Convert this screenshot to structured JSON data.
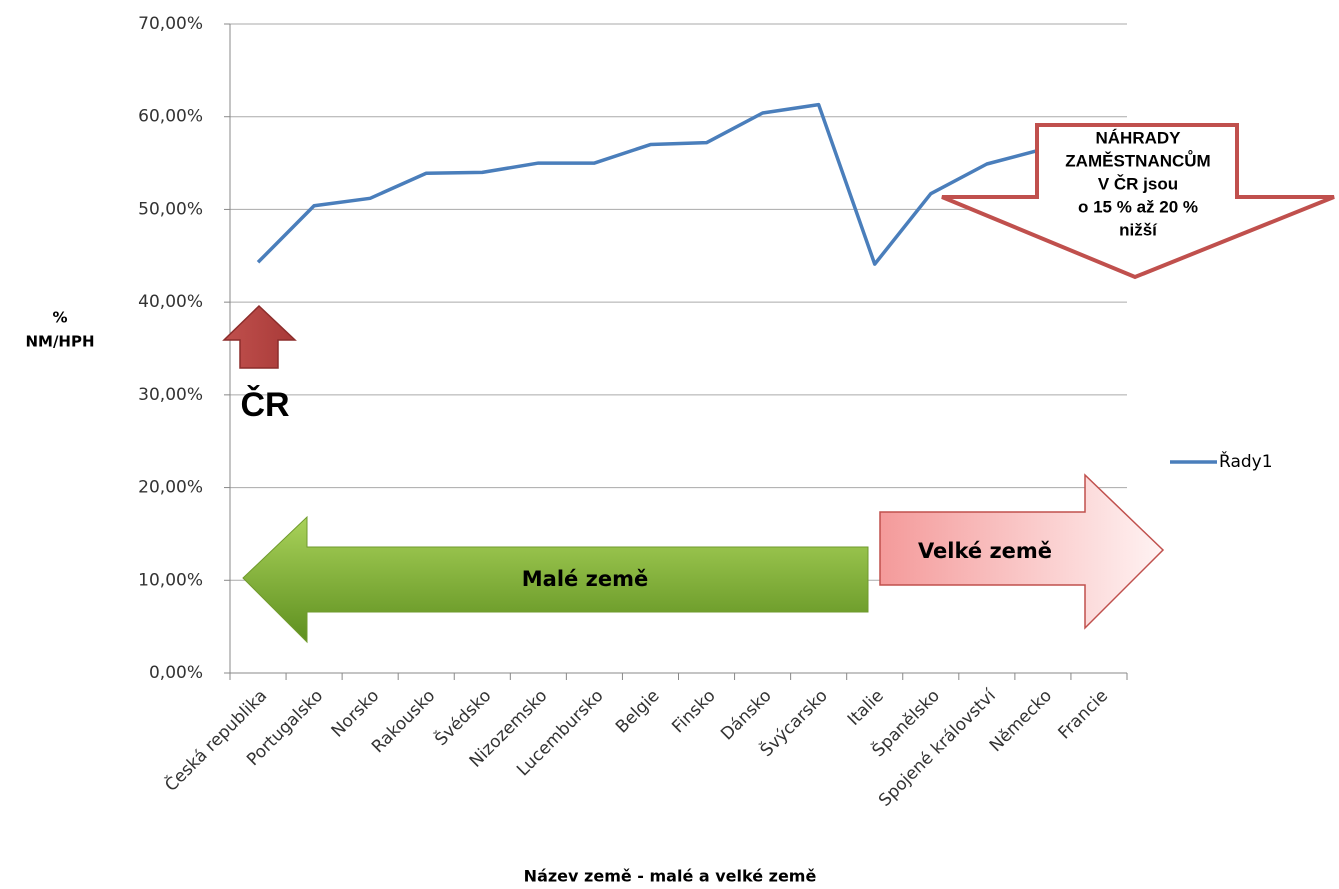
{
  "chart_data": {
    "type": "line",
    "categories": [
      "Česká republika",
      "Portugalsko",
      "Norsko",
      "Rakousko",
      "Švédsko",
      "Nizozemsko",
      "Lucembursko",
      "Belgie",
      "Finsko",
      "Dánsko",
      "Švýcarsko",
      "Italie",
      "Španělsko",
      "Spojené království",
      "Německo",
      "Francie"
    ],
    "series": [
      {
        "name": "Řady1",
        "color": "#4a7ebb",
        "values": [
          44.3,
          50.4,
          51.2,
          53.9,
          54.0,
          55.0,
          55.0,
          57.0,
          57.2,
          60.4,
          61.3,
          44.1,
          51.7,
          54.9,
          56.5,
          58.0
        ]
      }
    ],
    "ylim": [
      0,
      70
    ],
    "yticks": [
      {
        "value": 0,
        "label": "0,00%"
      },
      {
        "value": 10,
        "label": "10,00%"
      },
      {
        "value": 20,
        "label": "20,00%"
      },
      {
        "value": 30,
        "label": "30,00%"
      },
      {
        "value": 40,
        "label": "40,00%"
      },
      {
        "value": 50,
        "label": "50,00%"
      },
      {
        "value": 60,
        "label": "60,00%"
      },
      {
        "value": 70,
        "label": "70,00%"
      }
    ],
    "grid": true,
    "legend": "right",
    "ylabel": [
      "%",
      "NM/HPH"
    ],
    "xlabel": "Název země - malé a velké země",
    "annotations": {
      "callout": [
        "NÁHRADY",
        "ZAMĚSTNANCŮM",
        "V ČR jsou",
        "o 15 % až 20 %",
        "nižší"
      ],
      "cz_marker": "ČR",
      "small": "Malé země",
      "large": "Velké země"
    }
  }
}
